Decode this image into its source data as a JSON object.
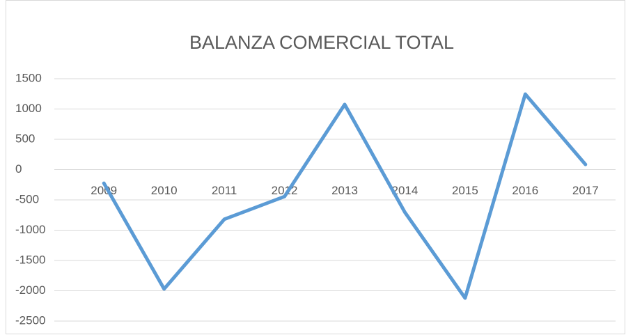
{
  "chart_data": {
    "type": "line",
    "title": "BALANZA COMERCIAL TOTAL",
    "categories": [
      "2009",
      "2010",
      "2011",
      "2012",
      "2013",
      "2014",
      "2015",
      "2016",
      "2017"
    ],
    "series": [
      {
        "name": "Balanza comercial",
        "color": "#5b9bd5",
        "values": [
          -225,
          -1970,
          -820,
          -445,
          1075,
          -705,
          -2120,
          1245,
          85
        ]
      }
    ],
    "ylim": [
      -2500,
      1500
    ],
    "yticks": [
      -2500,
      -2000,
      -1500,
      -1000,
      -500,
      0,
      500,
      1000,
      1500
    ],
    "grid": true
  }
}
